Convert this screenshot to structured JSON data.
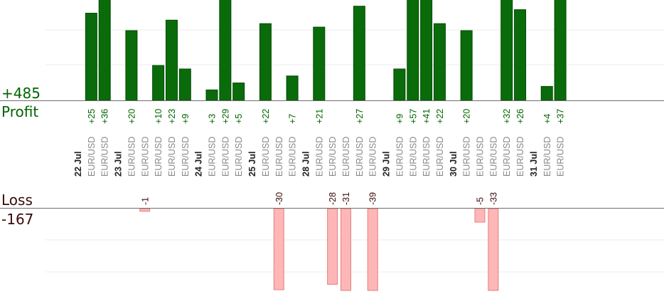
{
  "summary": {
    "profit_total": "+485",
    "profit_label": "Profit",
    "loss_label": "Loss",
    "loss_total": "-167"
  },
  "colors": {
    "profit_bar": "#0a6b0a",
    "profit_bar_dark": "#004d00",
    "profit_text": "#006400",
    "loss_bar": "#ffb6b6",
    "loss_bar_border": "#e08080",
    "axis_line": "#6e6e6e",
    "grid_line": "#ececec",
    "date_text": "#222222",
    "pair_text": "#888888"
  },
  "chart_data": {
    "type": "bar",
    "title": "",
    "grid": true,
    "legend": "none",
    "slots": [
      {
        "date": "22 Jul"
      },
      {
        "pair": "EUR/USD",
        "value": 25,
        "label": "+25"
      },
      {
        "pair": "EUR/USD",
        "value": 36,
        "label": "+36"
      },
      {
        "date": "23 Jul"
      },
      {
        "pair": "EUR/USD",
        "value": 20,
        "label": "+20"
      },
      {
        "pair": "EUR/USD",
        "value": -1,
        "label": "-1"
      },
      {
        "pair": "EUR/USD",
        "value": 10,
        "label": "+10"
      },
      {
        "pair": "EUR/USD",
        "value": 23,
        "label": "+23"
      },
      {
        "pair": "EUR/USD",
        "value": 9,
        "label": "+9"
      },
      {
        "date": "24 Jul"
      },
      {
        "pair": "EUR/USD",
        "value": 3,
        "label": "+3"
      },
      {
        "pair": "EUR/USD",
        "value": 29,
        "label": "+29"
      },
      {
        "pair": "EUR/USD",
        "value": 5,
        "label": "+5"
      },
      {
        "date": "25 Jul"
      },
      {
        "pair": "EUR/USD",
        "value": 22,
        "label": "+22"
      },
      {
        "pair": "EUR/USD",
        "value": -30,
        "label": "-30"
      },
      {
        "pair": "EUR/USD",
        "value": 7,
        "label": "+7"
      },
      {
        "date": "28 Jul"
      },
      {
        "pair": "EUR/USD",
        "value": 21,
        "label": "+21"
      },
      {
        "pair": "EUR/USD",
        "value": -28,
        "label": "-28"
      },
      {
        "pair": "EUR/USD",
        "value": -31,
        "label": "-31"
      },
      {
        "pair": "EUR/USD",
        "value": 27,
        "label": "+27"
      },
      {
        "pair": "EUR/USD",
        "value": -39,
        "label": "-39"
      },
      {
        "date": "29 Jul"
      },
      {
        "pair": "EUR/USD",
        "value": 9,
        "label": "+9"
      },
      {
        "pair": "EUR/USD",
        "value": 57,
        "label": "+57"
      },
      {
        "pair": "EUR/USD",
        "value": 41,
        "label": "+41"
      },
      {
        "pair": "EUR/USD",
        "value": 22,
        "label": "+22"
      },
      {
        "date": "30 Jul"
      },
      {
        "pair": "EUR/USD",
        "value": 20,
        "label": "+20"
      },
      {
        "pair": "EUR/USD",
        "value": -5,
        "label": "-5"
      },
      {
        "pair": "EUR/USD",
        "value": -33,
        "label": "-33"
      },
      {
        "pair": "EUR/USD",
        "value": 32,
        "label": "+32"
      },
      {
        "pair": "EUR/USD",
        "value": 26,
        "label": "+26"
      },
      {
        "date": "31 Jul"
      },
      {
        "pair": "EUR/USD",
        "value": 4,
        "label": "+4"
      },
      {
        "pair": "EUR/USD",
        "value": 37,
        "label": "+37"
      }
    ]
  }
}
